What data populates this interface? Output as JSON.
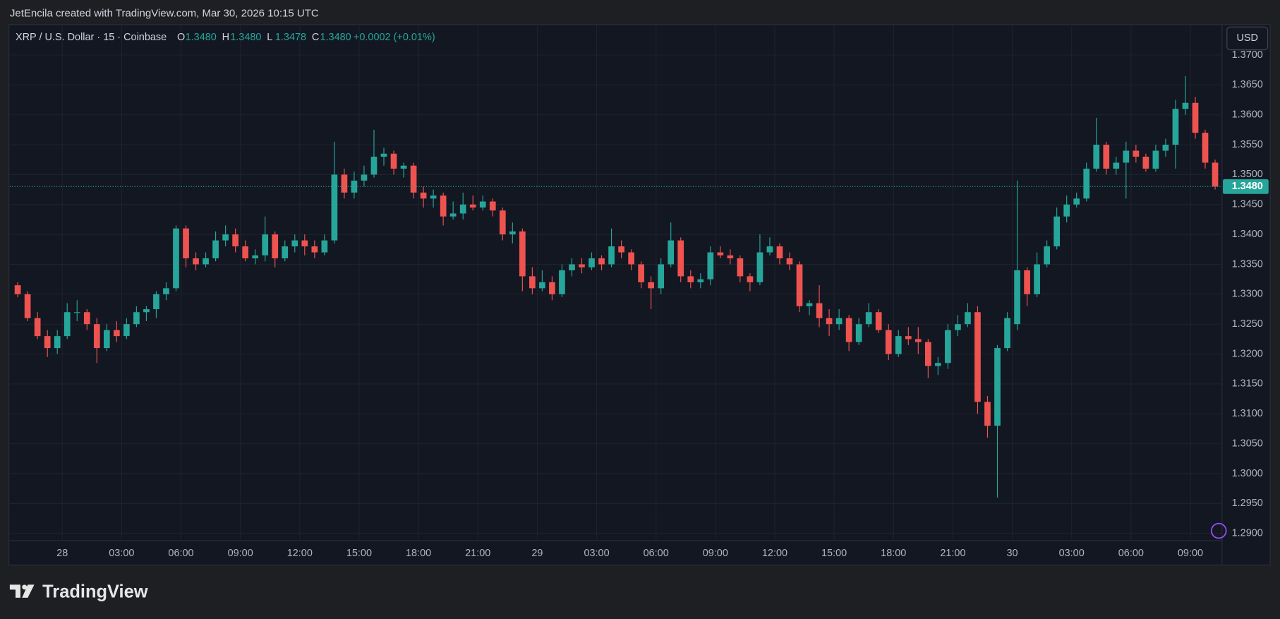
{
  "attribution": "JetEncila created with TradingView.com, Mar 30, 2026 10:15 UTC",
  "legend": {
    "symbol": "XRP / U.S. Dollar · 15 · Coinbase",
    "ohlc": [
      {
        "label": "O",
        "value": "1.3480"
      },
      {
        "label": "H",
        "value": "1.3480"
      },
      {
        "label": "L",
        "value": "1.3478"
      },
      {
        "label": "C",
        "value": "1.3480"
      }
    ],
    "change": "+0.0002 (+0.01%)"
  },
  "currency_button": "USD",
  "brand": "TradingView",
  "chart_data": {
    "type": "candlestick",
    "up_color": "#26a69a",
    "down_color": "#ef5350",
    "grid": true,
    "last_price": {
      "value": 1.348,
      "label": "1.3480"
    },
    "xlim": [
      -0.3,
      122.2
    ],
    "xticks": [
      {
        "value": 5,
        "label": "28"
      },
      {
        "value": 11,
        "label": "03:00"
      },
      {
        "value": 17,
        "label": "06:00"
      },
      {
        "value": 23,
        "label": "09:00"
      },
      {
        "value": 29,
        "label": "12:00"
      },
      {
        "value": 35,
        "label": "15:00"
      },
      {
        "value": 41,
        "label": "18:00"
      },
      {
        "value": 47,
        "label": "21:00"
      },
      {
        "value": 53,
        "label": "29"
      },
      {
        "value": 59,
        "label": "03:00"
      },
      {
        "value": 65,
        "label": "06:00"
      },
      {
        "value": 71,
        "label": "09:00"
      },
      {
        "value": 77,
        "label": "12:00"
      },
      {
        "value": 83,
        "label": "15:00"
      },
      {
        "value": 89,
        "label": "18:00"
      },
      {
        "value": 95,
        "label": "21:00"
      },
      {
        "value": 101,
        "label": "30"
      },
      {
        "value": 107,
        "label": "03:00"
      },
      {
        "value": 113,
        "label": "06:00"
      },
      {
        "value": 119,
        "label": "09:00"
      }
    ],
    "ylim": [
      1.2888,
      1.3751
    ],
    "yticks": [
      {
        "value": 1.29,
        "label": "1.2900"
      },
      {
        "value": 1.295,
        "label": "1.2950"
      },
      {
        "value": 1.3,
        "label": "1.3000"
      },
      {
        "value": 1.305,
        "label": "1.3050"
      },
      {
        "value": 1.31,
        "label": "1.3100"
      },
      {
        "value": 1.315,
        "label": "1.3150"
      },
      {
        "value": 1.32,
        "label": "1.3200"
      },
      {
        "value": 1.325,
        "label": "1.3250"
      },
      {
        "value": 1.33,
        "label": "1.3300"
      },
      {
        "value": 1.335,
        "label": "1.3350"
      },
      {
        "value": 1.34,
        "label": "1.3400"
      },
      {
        "value": 1.345,
        "label": "1.3450"
      },
      {
        "value": 1.35,
        "label": "1.3500"
      },
      {
        "value": 1.355,
        "label": "1.3550"
      },
      {
        "value": 1.36,
        "label": "1.3600"
      },
      {
        "value": 1.365,
        "label": "1.3650"
      },
      {
        "value": 1.37,
        "label": "1.3700"
      }
    ],
    "values": [
      [
        1.3315,
        1.332,
        1.3295,
        1.33
      ],
      [
        1.33,
        1.3305,
        1.3255,
        1.326
      ],
      [
        1.326,
        1.327,
        1.3225,
        1.323
      ],
      [
        1.323,
        1.324,
        1.3195,
        1.321
      ],
      [
        1.321,
        1.324,
        1.32,
        1.323
      ],
      [
        1.323,
        1.3285,
        1.3225,
        1.327
      ],
      [
        1.327,
        1.329,
        1.3255,
        1.327
      ],
      [
        1.327,
        1.3275,
        1.324,
        1.325
      ],
      [
        1.325,
        1.326,
        1.3185,
        1.321
      ],
      [
        1.321,
        1.325,
        1.3205,
        1.324
      ],
      [
        1.324,
        1.3255,
        1.322,
        1.323
      ],
      [
        1.323,
        1.326,
        1.3225,
        1.325
      ],
      [
        1.325,
        1.328,
        1.3245,
        1.327
      ],
      [
        1.327,
        1.328,
        1.3255,
        1.3275
      ],
      [
        1.3275,
        1.3305,
        1.326,
        1.33
      ],
      [
        1.33,
        1.332,
        1.329,
        1.331
      ],
      [
        1.331,
        1.3415,
        1.3305,
        1.341
      ],
      [
        1.341,
        1.3415,
        1.3345,
        1.336
      ],
      [
        1.336,
        1.337,
        1.334,
        1.335
      ],
      [
        1.335,
        1.337,
        1.3345,
        1.336
      ],
      [
        1.336,
        1.3405,
        1.3355,
        1.339
      ],
      [
        1.339,
        1.3415,
        1.338,
        1.34
      ],
      [
        1.34,
        1.341,
        1.337,
        1.338
      ],
      [
        1.338,
        1.339,
        1.3355,
        1.336
      ],
      [
        1.336,
        1.3375,
        1.335,
        1.3365
      ],
      [
        1.3365,
        1.343,
        1.3355,
        1.34
      ],
      [
        1.34,
        1.3405,
        1.3345,
        1.336
      ],
      [
        1.336,
        1.339,
        1.3355,
        1.338
      ],
      [
        1.338,
        1.34,
        1.337,
        1.339
      ],
      [
        1.339,
        1.34,
        1.3365,
        1.338
      ],
      [
        1.338,
        1.339,
        1.336,
        1.337
      ],
      [
        1.337,
        1.34,
        1.3365,
        1.339
      ],
      [
        1.339,
        1.3555,
        1.3385,
        1.35
      ],
      [
        1.35,
        1.351,
        1.346,
        1.347
      ],
      [
        1.347,
        1.3505,
        1.346,
        1.349
      ],
      [
        1.349,
        1.3515,
        1.348,
        1.35
      ],
      [
        1.35,
        1.3575,
        1.3495,
        1.353
      ],
      [
        1.353,
        1.3545,
        1.3515,
        1.3535
      ],
      [
        1.3535,
        1.354,
        1.35,
        1.351
      ],
      [
        1.351,
        1.352,
        1.3495,
        1.3515
      ],
      [
        1.3515,
        1.352,
        1.346,
        1.347
      ],
      [
        1.347,
        1.348,
        1.3445,
        1.346
      ],
      [
        1.346,
        1.3475,
        1.3445,
        1.3465
      ],
      [
        1.3465,
        1.347,
        1.3415,
        1.343
      ],
      [
        1.343,
        1.3455,
        1.3425,
        1.3435
      ],
      [
        1.3435,
        1.347,
        1.3425,
        1.345
      ],
      [
        1.345,
        1.3465,
        1.344,
        1.3445
      ],
      [
        1.3445,
        1.3465,
        1.344,
        1.3455
      ],
      [
        1.3455,
        1.346,
        1.343,
        1.344
      ],
      [
        1.344,
        1.3445,
        1.339,
        1.34
      ],
      [
        1.34,
        1.342,
        1.3385,
        1.3405
      ],
      [
        1.3405,
        1.341,
        1.3305,
        1.333
      ],
      [
        1.333,
        1.3345,
        1.33,
        1.331
      ],
      [
        1.331,
        1.334,
        1.3305,
        1.332
      ],
      [
        1.332,
        1.333,
        1.329,
        1.33
      ],
      [
        1.33,
        1.335,
        1.3295,
        1.334
      ],
      [
        1.334,
        1.336,
        1.333,
        1.335
      ],
      [
        1.335,
        1.336,
        1.3335,
        1.3345
      ],
      [
        1.3345,
        1.337,
        1.334,
        1.336
      ],
      [
        1.336,
        1.3365,
        1.334,
        1.335
      ],
      [
        1.335,
        1.341,
        1.3345,
        1.338
      ],
      [
        1.338,
        1.339,
        1.336,
        1.337
      ],
      [
        1.337,
        1.3375,
        1.334,
        1.335
      ],
      [
        1.335,
        1.3355,
        1.331,
        1.332
      ],
      [
        1.332,
        1.333,
        1.3275,
        1.331
      ],
      [
        1.331,
        1.336,
        1.33,
        1.335
      ],
      [
        1.335,
        1.342,
        1.3345,
        1.339
      ],
      [
        1.339,
        1.3395,
        1.332,
        1.333
      ],
      [
        1.333,
        1.334,
        1.331,
        1.332
      ],
      [
        1.332,
        1.3335,
        1.331,
        1.3325
      ],
      [
        1.3325,
        1.338,
        1.3315,
        1.337
      ],
      [
        1.337,
        1.338,
        1.336,
        1.3365
      ],
      [
        1.3365,
        1.3375,
        1.335,
        1.336
      ],
      [
        1.336,
        1.3365,
        1.332,
        1.333
      ],
      [
        1.333,
        1.3335,
        1.3305,
        1.332
      ],
      [
        1.332,
        1.34,
        1.3315,
        1.337
      ],
      [
        1.337,
        1.3395,
        1.3365,
        1.338
      ],
      [
        1.338,
        1.3385,
        1.335,
        1.336
      ],
      [
        1.336,
        1.337,
        1.334,
        1.335
      ],
      [
        1.335,
        1.3355,
        1.327,
        1.328
      ],
      [
        1.328,
        1.329,
        1.3265,
        1.3285
      ],
      [
        1.3285,
        1.3315,
        1.3245,
        1.326
      ],
      [
        1.326,
        1.3275,
        1.323,
        1.325
      ],
      [
        1.325,
        1.3275,
        1.324,
        1.326
      ],
      [
        1.326,
        1.3265,
        1.3205,
        1.322
      ],
      [
        1.322,
        1.326,
        1.3215,
        1.325
      ],
      [
        1.325,
        1.3285,
        1.3245,
        1.327
      ],
      [
        1.327,
        1.3275,
        1.3235,
        1.324
      ],
      [
        1.324,
        1.325,
        1.319,
        1.32
      ],
      [
        1.32,
        1.324,
        1.3195,
        1.323
      ],
      [
        1.323,
        1.3245,
        1.3215,
        1.3225
      ],
      [
        1.3225,
        1.3245,
        1.32,
        1.322
      ],
      [
        1.322,
        1.3225,
        1.316,
        1.318
      ],
      [
        1.318,
        1.3195,
        1.3165,
        1.3185
      ],
      [
        1.3185,
        1.325,
        1.3175,
        1.324
      ],
      [
        1.324,
        1.3265,
        1.323,
        1.325
      ],
      [
        1.325,
        1.3285,
        1.3245,
        1.327
      ],
      [
        1.327,
        1.328,
        1.31,
        1.312
      ],
      [
        1.312,
        1.313,
        1.306,
        1.308
      ],
      [
        1.308,
        1.3215,
        1.296,
        1.321
      ],
      [
        1.321,
        1.327,
        1.3205,
        1.326
      ],
      [
        1.325,
        1.349,
        1.324,
        1.334
      ],
      [
        1.334,
        1.3345,
        1.328,
        1.33
      ],
      [
        1.33,
        1.337,
        1.3295,
        1.335
      ],
      [
        1.335,
        1.339,
        1.3345,
        1.338
      ],
      [
        1.338,
        1.3445,
        1.3375,
        1.343
      ],
      [
        1.343,
        1.3465,
        1.342,
        1.345
      ],
      [
        1.345,
        1.347,
        1.3445,
        1.346
      ],
      [
        1.346,
        1.352,
        1.3455,
        1.351
      ],
      [
        1.351,
        1.3595,
        1.3505,
        1.355
      ],
      [
        1.355,
        1.3555,
        1.35,
        1.351
      ],
      [
        1.351,
        1.353,
        1.35,
        1.352
      ],
      [
        1.352,
        1.3555,
        1.346,
        1.354
      ],
      [
        1.354,
        1.355,
        1.352,
        1.353
      ],
      [
        1.353,
        1.3535,
        1.3505,
        1.351
      ],
      [
        1.351,
        1.355,
        1.3505,
        1.354
      ],
      [
        1.354,
        1.356,
        1.353,
        1.355
      ],
      [
        1.355,
        1.3625,
        1.351,
        1.361
      ],
      [
        1.361,
        1.3665,
        1.36,
        1.362
      ],
      [
        1.362,
        1.363,
        1.356,
        1.357
      ],
      [
        1.357,
        1.3575,
        1.351,
        1.352
      ],
      [
        1.352,
        1.3525,
        1.3475,
        1.348
      ]
    ]
  }
}
